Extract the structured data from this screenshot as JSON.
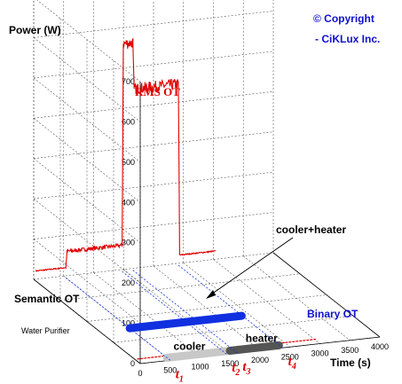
{
  "copyright": {
    "line1": "© Copyright",
    "line2": "- CiKLux Inc."
  },
  "chart_data": {
    "type": "line",
    "title": "",
    "ylabel": "Power (W)",
    "xlabel": "Time (s)",
    "ylim": [
      0,
      700
    ],
    "xlim": [
      0,
      4000
    ],
    "y_ticks": [
      "0",
      "100",
      "200",
      "300",
      "400",
      "500",
      "600",
      "700"
    ],
    "x_ticks": [
      "0",
      "500",
      "1000",
      "1500",
      "2000",
      "2500",
      "3000",
      "3500",
      "4000"
    ],
    "depth_labels": [
      "Semantic OT",
      "Water Purifier"
    ],
    "series": [
      {
        "name": "RMS OT",
        "points": [
          {
            "t": 0,
            "w": 25
          },
          {
            "t": 500,
            "w": 25
          },
          {
            "t": 520,
            "w": 65
          },
          {
            "t": 1440,
            "w": 65
          },
          {
            "t": 1460,
            "w": 565
          },
          {
            "t": 1620,
            "w": 565
          },
          {
            "t": 1640,
            "w": 450
          },
          {
            "t": 2380,
            "w": 450
          },
          {
            "t": 2400,
            "w": 25
          },
          {
            "t": 3000,
            "w": 25
          }
        ]
      }
    ],
    "bands": [
      {
        "label": "cooler",
        "start": 500,
        "end": 1550,
        "color": "#c8c8c8"
      },
      {
        "label": "heater",
        "start": 1550,
        "end": 2370,
        "color": "#555555"
      },
      {
        "name": "Binary OT",
        "start": 500,
        "end": 2370,
        "color": "#1030e0"
      }
    ],
    "annotations": [
      "RMS OT",
      "cooler+heater",
      "Binary OT"
    ],
    "time_markers": [
      {
        "label": "t",
        "sub": "1",
        "t": 500
      },
      {
        "label": "t",
        "sub": "2",
        "t": 1440
      },
      {
        "label": "t",
        "sub": "3",
        "t": 1620
      },
      {
        "label": "t",
        "sub": "4",
        "t": 2380
      }
    ]
  }
}
